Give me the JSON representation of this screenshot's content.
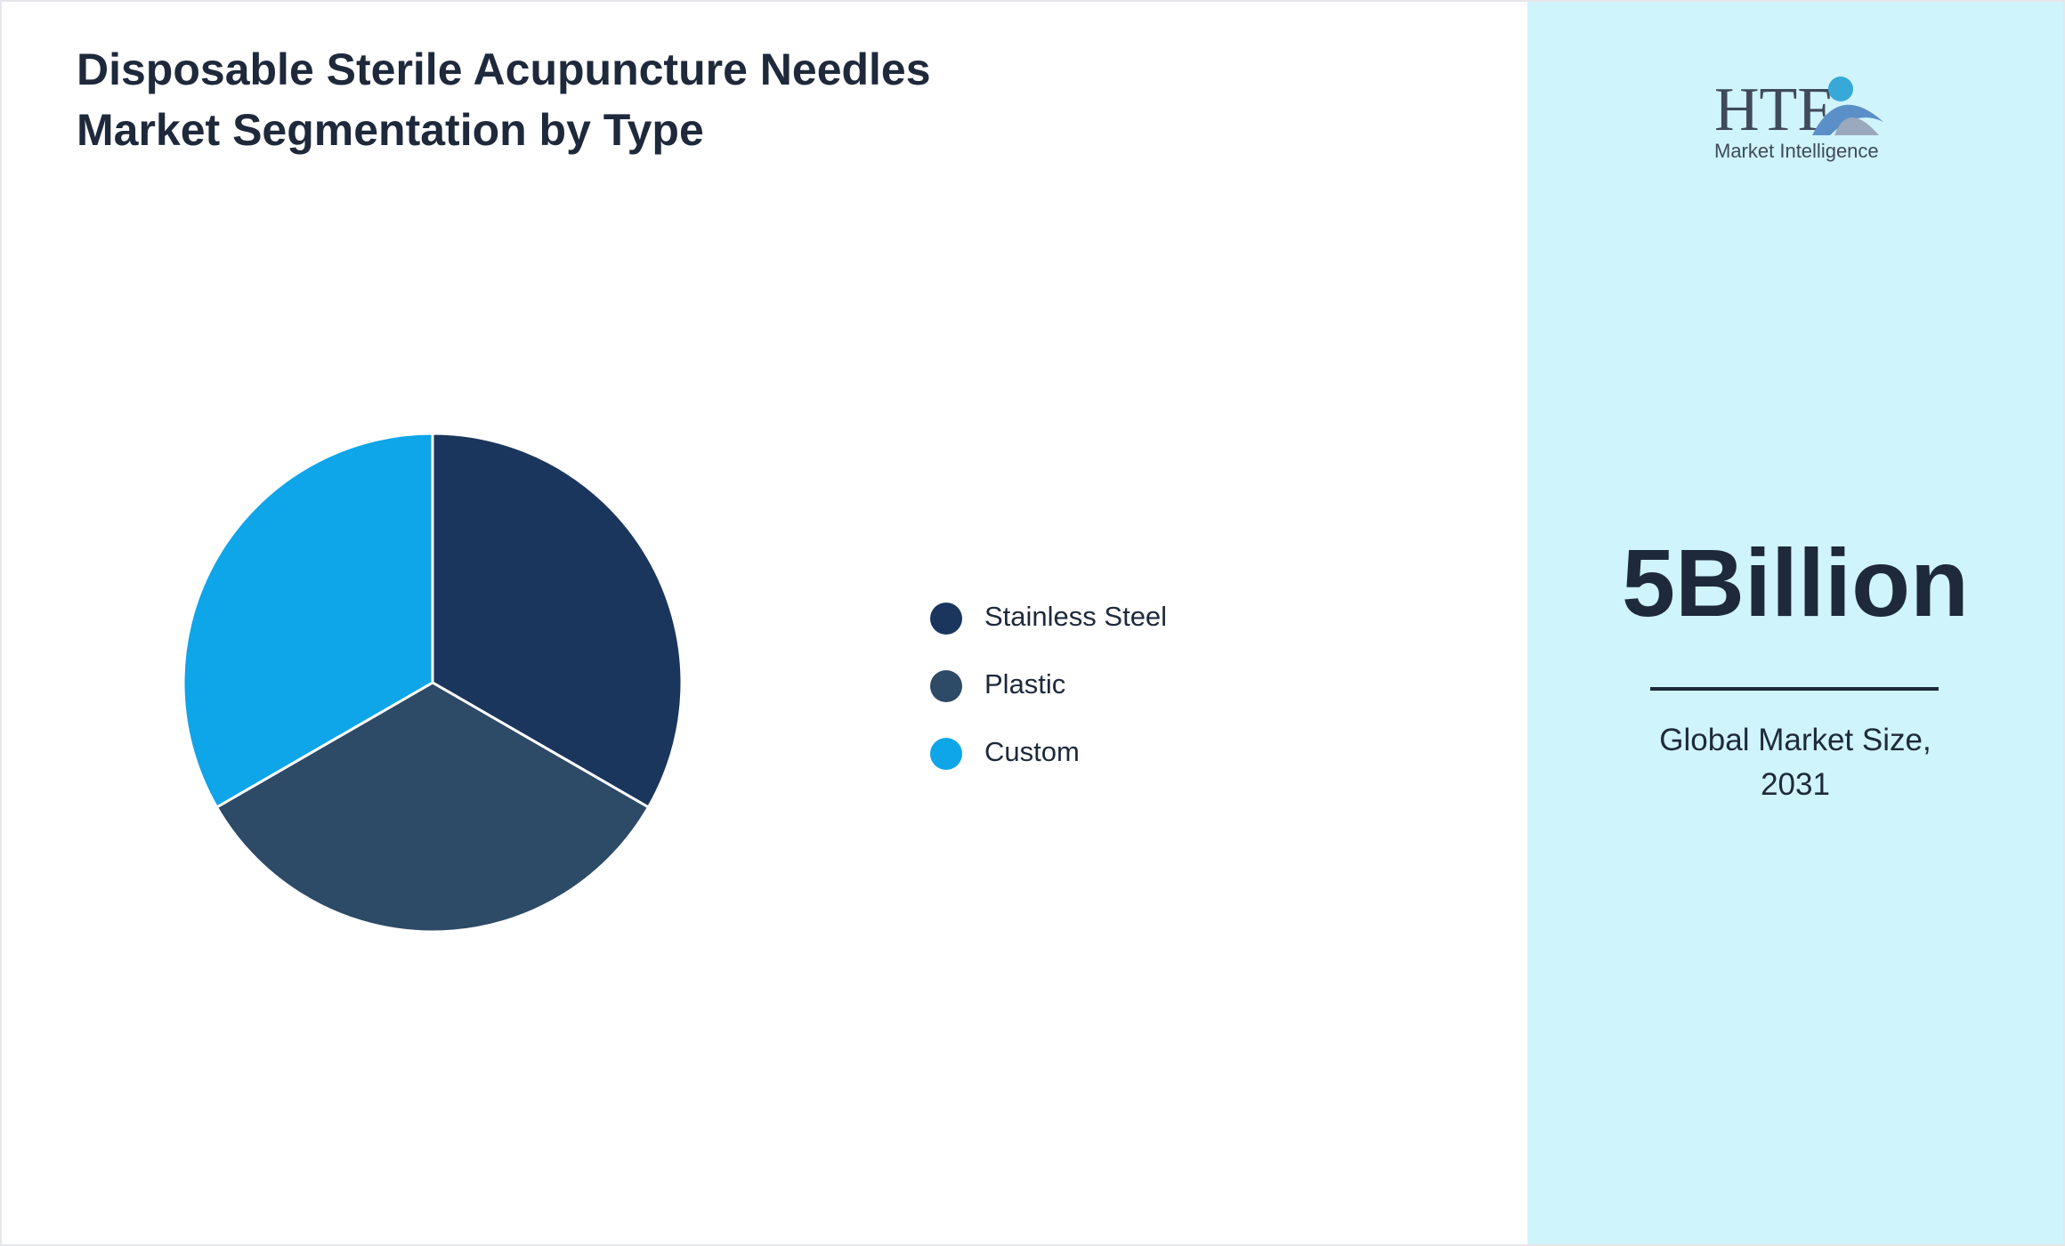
{
  "chart_data": {
    "type": "pie",
    "title": "Disposable Sterile Acupuncture Needles Market Segmentation by Type",
    "categories": [
      "Stainless Steel",
      "Plastic",
      "Custom"
    ],
    "values": [
      33.3,
      33.3,
      33.3
    ],
    "colors": [
      "#1b365d",
      "#2d4a66",
      "#0ea5e9"
    ],
    "legend": "right"
  },
  "panel": {
    "logo": "HTF",
    "logo_subtitle": "Market Intelligence",
    "value": "5Billion",
    "caption": "Global Market Size, 2031"
  }
}
